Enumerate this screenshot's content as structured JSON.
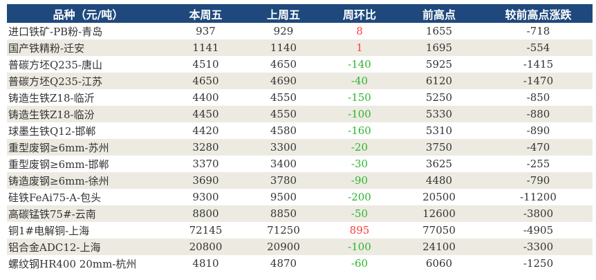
{
  "colors": {
    "header": "#1F497D",
    "alt_row": "#EDEAE1",
    "up": "#FF3B3B",
    "down": "#2DB52D"
  },
  "headers": [
    "品种（元/吨）",
    "本周五",
    "上周五",
    "周环比",
    "前高点",
    "较前高点涨跌"
  ],
  "rows": [
    [
      "进口铁矿-PB粉-青岛",
      "937",
      "929",
      "8",
      "1655",
      "-718"
    ],
    [
      "国产铁精粉-迁安",
      "1141",
      "1140",
      "1",
      "1695",
      "-554"
    ],
    [
      "普碳方坯Q235-唐山",
      "4510",
      "4650",
      "-140",
      "5925",
      "-1415"
    ],
    [
      "普碳方坯Q235-江苏",
      "4650",
      "4690",
      "-40",
      "6120",
      "-1470"
    ],
    [
      "铸造生铁Z18-临沂",
      "4400",
      "4550",
      "-150",
      "5250",
      "-850"
    ],
    [
      "铸造生铁Z18-临汾",
      "4450",
      "4550",
      "-100",
      "5330",
      "-880"
    ],
    [
      "球墨生铁Q12-邯郸",
      "4420",
      "4580",
      "-160",
      "5310",
      "-890"
    ],
    [
      "重型废钢≥6mm-苏州",
      "3280",
      "3300",
      "-20",
      "3750",
      "-470"
    ],
    [
      "重型废钢≥6mm-邯郸",
      "3370",
      "3400",
      "-30",
      "3625",
      "-255"
    ],
    [
      "铸造废钢≥6mm-徐州",
      "3690",
      "3780",
      "-90",
      "4480",
      "-790"
    ],
    [
      "硅铁FeAi75-A-包头",
      "9300",
      "9500",
      "-200",
      "20500",
      "-11200"
    ],
    [
      "高碳锰铁75#-云南",
      "8800",
      "8850",
      "-50",
      "12600",
      "-3800"
    ],
    [
      "铜1#电解铜-上海",
      "72145",
      "71250",
      "895",
      "77050",
      "-4905"
    ],
    [
      "铝合金ADC12-上海",
      "20800",
      "20900",
      "-100",
      "24100",
      "-3300"
    ],
    [
      "螺纹钢HR400 20mm-杭州",
      "4810",
      "4870",
      "-60",
      "6060",
      "-1250"
    ]
  ]
}
